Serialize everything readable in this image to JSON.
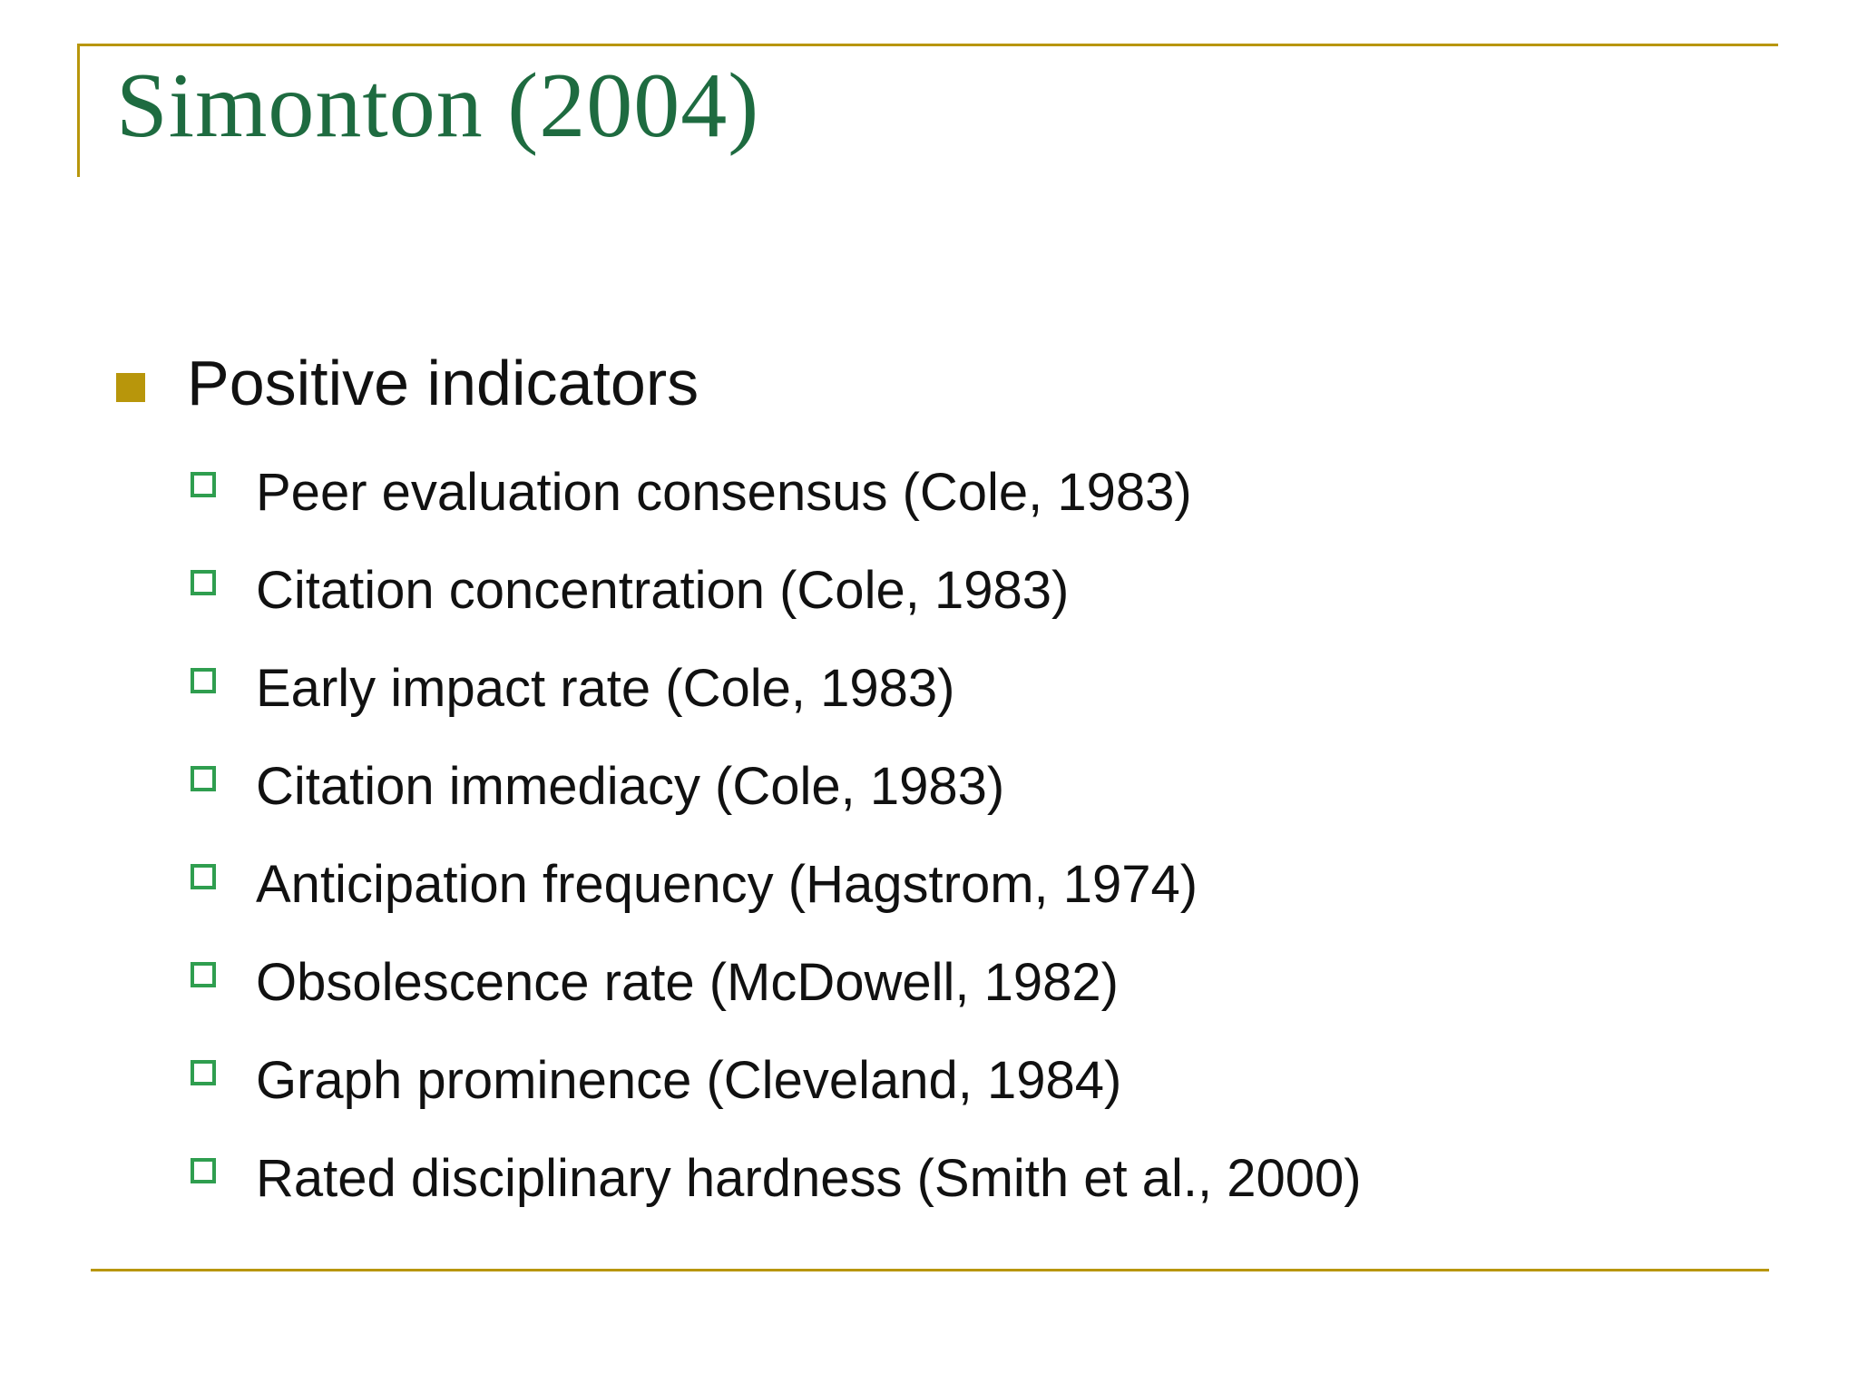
{
  "slide": {
    "title": "Simonton (2004)",
    "colors": {
      "rule_gold": "#b8960b",
      "title_green": "#1e6b40",
      "sub_bullet_green": "#2f9e4f",
      "text_black": "#111111"
    },
    "bullets": [
      {
        "label": "Positive indicators",
        "items": [
          "Peer evaluation consensus (Cole, 1983)",
          "Citation concentration (Cole, 1983)",
          "Early impact rate (Cole, 1983)",
          "Citation immediacy (Cole, 1983)",
          "Anticipation frequency (Hagstrom, 1974)",
          "Obsolescence rate (McDowell, 1982)",
          "Graph prominence (Cleveland, 1984)",
          "Rated disciplinary hardness (Smith et al., 2000)"
        ]
      }
    ]
  }
}
